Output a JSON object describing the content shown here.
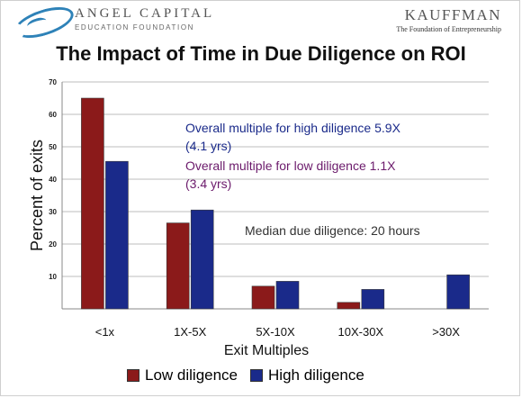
{
  "header": {
    "left_logo_name": "ANGEL CAPITAL",
    "left_logo_sub": "EDUCATION FOUNDATION",
    "right_logo_name": "KAUFFMAN",
    "right_logo_sub": "The Foundation of Entrepreneurship"
  },
  "colors": {
    "low_diligence": "#8b1a1a",
    "high_diligence": "#1a2a8a",
    "annotation_high": "#1a2a8a",
    "annotation_low": "#6b1a6b",
    "annotation_median": "#333333"
  },
  "chart_data": {
    "type": "bar",
    "title": "The Impact of Time in Due Diligence on ROI",
    "xlabel": "Exit Multiples",
    "ylabel": "Percent of exits",
    "categories": [
      "<1x",
      "1X-5X",
      "5X-10X",
      "10X-30X",
      ">30X"
    ],
    "ylim": [
      0,
      70
    ],
    "yticks": [
      "",
      "10",
      "20",
      "30",
      "40",
      "50",
      "60",
      "70"
    ],
    "grid": true,
    "series": [
      {
        "name": "Low diligence",
        "values": [
          65,
          26.5,
          7,
          2,
          0
        ]
      },
      {
        "name": "High diligence",
        "values": [
          45.5,
          30.5,
          8.5,
          6,
          10.5
        ]
      }
    ],
    "annotations": {
      "high_line1": "Overall multiple for high diligence 5.9X",
      "high_line2": "(4.1 yrs)",
      "low_line1": "Overall multiple for low diligence 1.1X",
      "low_line2": "(3.4 yrs)",
      "median": "Median due diligence: 20 hours"
    },
    "legend_position": "bottom"
  }
}
